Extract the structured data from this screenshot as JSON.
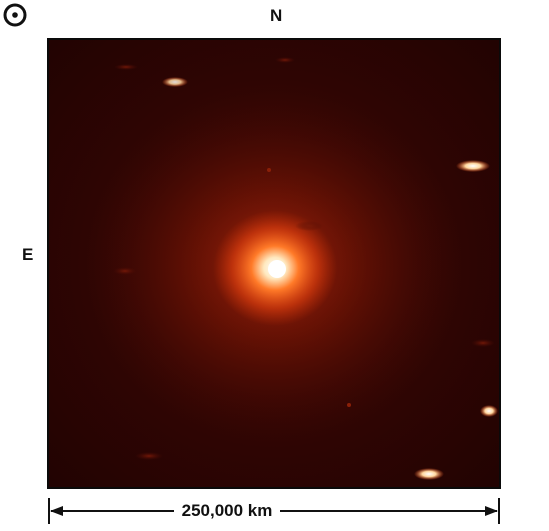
{
  "labels": {
    "north": "N",
    "east": "E",
    "sun_symbol": "sun-symbol-icon"
  },
  "scale_bar": {
    "text": "250,000 km"
  },
  "colors": {
    "background": "#2a0303",
    "coma": "#ff5a1a",
    "nucleus": "#fff3d0",
    "star": "#ffe6c0"
  }
}
